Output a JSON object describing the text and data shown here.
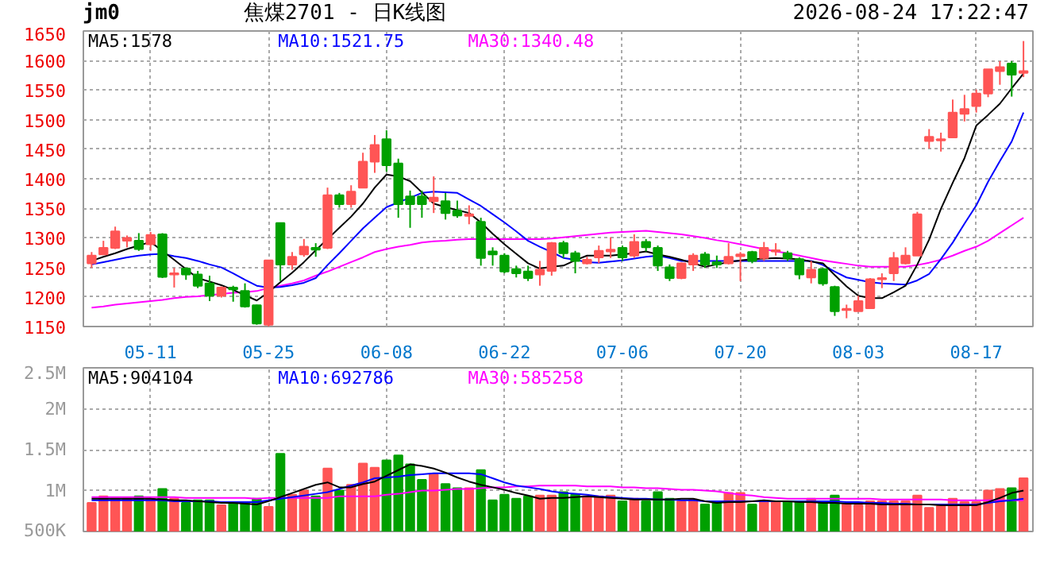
{
  "chart_data": [
    {
      "type": "candlestick",
      "title": "jm0",
      "subtitle": "焦煤2701 - 日K线图",
      "annotations": [
        "2026-08-24 17:22:47"
      ],
      "categories": [
        null,
        null,
        null,
        null,
        null,
        "05-11",
        null,
        null,
        null,
        null,
        null,
        null,
        null,
        null,
        null,
        "05-25",
        null,
        null,
        null,
        null,
        null,
        null,
        null,
        null,
        null,
        "06-08",
        null,
        null,
        null,
        null,
        null,
        null,
        null,
        null,
        null,
        "06-22",
        null,
        null,
        null,
        null,
        null,
        null,
        null,
        null,
        null,
        "07-06",
        null,
        null,
        null,
        null,
        null,
        null,
        null,
        null,
        null,
        "07-20",
        null,
        null,
        null,
        null,
        null,
        null,
        null,
        null,
        null,
        "08-03",
        null,
        null,
        null,
        null,
        null,
        null,
        null,
        null,
        null,
        "08-17",
        null,
        null,
        null,
        null
      ],
      "ohlc": [
        [
          1257,
          1276,
          1249,
          1270
        ],
        [
          1272,
          1295,
          1272,
          1283
        ],
        [
          1283,
          1319,
          1281,
          1311
        ],
        [
          1295,
          1304,
          1284,
          1300
        ],
        [
          1295,
          1308,
          1278,
          1281
        ],
        [
          1289,
          1310,
          1278,
          1305
        ],
        [
          1306,
          1308,
          1232,
          1234
        ],
        [
          1238,
          1249,
          1216,
          1240
        ],
        [
          1248,
          1250,
          1229,
          1238
        ],
        [
          1238,
          1244,
          1215,
          1219
        ],
        [
          1223,
          1236,
          1193,
          1202
        ],
        [
          1202,
          1218,
          1199,
          1216
        ],
        [
          1216,
          1219,
          1192,
          1213
        ],
        [
          1210,
          1223,
          1182,
          1184
        ],
        [
          1186,
          1187,
          1153,
          1155
        ],
        [
          1153,
          1262,
          1150,
          1262
        ],
        [
          1325,
          1325,
          1227,
          1255
        ],
        [
          1255,
          1276,
          1246,
          1268
        ],
        [
          1272,
          1298,
          1268,
          1285
        ],
        [
          1283,
          1291,
          1268,
          1280
        ],
        [
          1283,
          1385,
          1281,
          1372
        ],
        [
          1372,
          1376,
          1351,
          1357
        ],
        [
          1357,
          1389,
          1351,
          1378
        ],
        [
          1385,
          1444,
          1385,
          1429
        ],
        [
          1429,
          1474,
          1410,
          1457
        ],
        [
          1467,
          1482,
          1412,
          1423
        ],
        [
          1426,
          1434,
          1334,
          1357
        ],
        [
          1370,
          1380,
          1317,
          1357
        ],
        [
          1370,
          1380,
          1334,
          1357
        ],
        [
          1362,
          1404,
          1342,
          1368
        ],
        [
          1362,
          1376,
          1331,
          1342
        ],
        [
          1346,
          1363,
          1334,
          1338
        ],
        [
          1337,
          1355,
          1323,
          1340
        ],
        [
          1327,
          1334,
          1253,
          1266
        ],
        [
          1277,
          1284,
          1253,
          1272
        ],
        [
          1270,
          1274,
          1240,
          1243
        ],
        [
          1247,
          1253,
          1233,
          1240
        ],
        [
          1243,
          1253,
          1227,
          1232
        ],
        [
          1238,
          1261,
          1219,
          1246
        ],
        [
          1244,
          1293,
          1236,
          1291
        ],
        [
          1291,
          1295,
          1266,
          1274
        ],
        [
          1274,
          1278,
          1240,
          1261
        ],
        [
          1257,
          1268,
          1255,
          1263
        ],
        [
          1267,
          1287,
          1257,
          1278
        ],
        [
          1277,
          1301,
          1266,
          1280
        ],
        [
          1283,
          1287,
          1261,
          1267
        ],
        [
          1270,
          1306,
          1266,
          1293
        ],
        [
          1293,
          1298,
          1277,
          1284
        ],
        [
          1283,
          1287,
          1244,
          1253
        ],
        [
          1250,
          1255,
          1227,
          1232
        ],
        [
          1232,
          1258,
          1230,
          1257
        ],
        [
          1255,
          1274,
          1244,
          1270
        ],
        [
          1272,
          1276,
          1249,
          1255
        ],
        [
          1259,
          1270,
          1249,
          1255
        ],
        [
          1257,
          1291,
          1255,
          1268
        ],
        [
          1269,
          1276,
          1227,
          1272
        ],
        [
          1276,
          1278,
          1257,
          1261
        ],
        [
          1266,
          1293,
          1261,
          1283
        ],
        [
          1277,
          1291,
          1270,
          1279
        ],
        [
          1274,
          1278,
          1261,
          1266
        ],
        [
          1264,
          1267,
          1230,
          1238
        ],
        [
          1233,
          1261,
          1223,
          1246
        ],
        [
          1247,
          1249,
          1219,
          1223
        ],
        [
          1217,
          1219,
          1168,
          1176
        ],
        [
          1178,
          1187,
          1164,
          1180
        ],
        [
          1176,
          1202,
          1176,
          1193
        ],
        [
          1181,
          1232,
          1181,
          1230
        ],
        [
          1230,
          1240,
          1215,
          1232
        ],
        [
          1240,
          1276,
          1227,
          1266
        ],
        [
          1257,
          1284,
          1255,
          1270
        ],
        [
          1270,
          1344,
          1270,
          1340
        ],
        [
          1464,
          1484,
          1451,
          1471
        ],
        [
          1465,
          1478,
          1446,
          1467
        ],
        [
          1470,
          1534,
          1470,
          1512
        ],
        [
          1510,
          1542,
          1497,
          1518
        ],
        [
          1523,
          1551,
          1512,
          1544
        ],
        [
          1544,
          1585,
          1538,
          1585
        ],
        [
          1582,
          1599,
          1559,
          1589
        ],
        [
          1595,
          1599,
          1539,
          1576
        ],
        [
          1579,
          1633,
          1572,
          1582
        ]
      ],
      "colors": [
        "#ff5555",
        "#ff5555",
        "#ff5555",
        "#ff5555",
        "#00a000",
        "#ff5555",
        "#00a000",
        "#ff5555",
        "#00a000",
        "#00a000",
        "#00a000",
        "#ff5555",
        "#00a000",
        "#00a000",
        "#00a000",
        "#ff5555",
        "#00a000",
        "#ff5555",
        "#ff5555",
        "#00a000",
        "#ff5555",
        "#00a000",
        "#ff5555",
        "#ff5555",
        "#ff5555",
        "#00a000",
        "#00a000",
        "#00a000",
        "#00a000",
        "#ff5555",
        "#00a000",
        "#00a000",
        "#ff5555",
        "#00a000",
        "#00a000",
        "#00a000",
        "#00a000",
        "#00a000",
        "#ff5555",
        "#ff5555",
        "#00a000",
        "#00a000",
        "#ff5555",
        "#ff5555",
        "#ff5555",
        "#00a000",
        "#ff5555",
        "#00a000",
        "#00a000",
        "#00a000",
        "#ff5555",
        "#ff5555",
        "#00a000",
        "#00a000",
        "#ff5555",
        "#ff5555",
        "#00a000",
        "#ff5555",
        "#ff5555",
        "#00a000",
        "#00a000",
        "#ff5555",
        "#00a000",
        "#00a000",
        "#ff5555",
        "#ff5555",
        "#ff5555",
        "#ff5555",
        "#ff5555",
        "#ff5555",
        "#ff5555",
        "#ff5555",
        "#ff5555",
        "#ff5555",
        "#ff5555",
        "#ff5555",
        "#ff5555",
        "#ff5555",
        "#00a000",
        "#ff5555"
      ],
      "series": [
        {
          "type": "line",
          "name": "MA5:1578",
          "color": "#000000",
          "values": [
            1261,
            1268,
            1274,
            1281,
            1287,
            1293,
            1278,
            1263,
            1247,
            1232,
            1226,
            1220,
            1212,
            1203,
            1194,
            1208,
            1225,
            1241,
            1259,
            1279,
            1298,
            1317,
            1336,
            1358,
            1385,
            1407,
            1404,
            1396,
            1377,
            1358,
            1352,
            1347,
            1342,
            1326,
            1307,
            1289,
            1273,
            1257,
            1248,
            1251,
            1253,
            1262,
            1270,
            1270,
            1270,
            1272,
            1274,
            1277,
            1272,
            1268,
            1263,
            1257,
            1251,
            1255,
            1259,
            1262,
            1264,
            1265,
            1266,
            1265,
            1264,
            1260,
            1257,
            1237,
            1218,
            1202,
            1198,
            1198,
            1208,
            1219,
            1255,
            1297,
            1349,
            1393,
            1435,
            1490,
            1508,
            1527,
            1553,
            1578
          ]
        },
        {
          "type": "line",
          "name": "MA10:1521.75",
          "color": "#0000ff",
          "values": [
            1255,
            1259,
            1263,
            1267,
            1270,
            1272,
            1273,
            1269,
            1266,
            1261,
            1255,
            1250,
            1240,
            1229,
            1219,
            1216,
            1217,
            1220,
            1224,
            1232,
            1254,
            1274,
            1295,
            1316,
            1334,
            1352,
            1360,
            1368,
            1376,
            1378,
            1377,
            1376,
            1365,
            1354,
            1340,
            1326,
            1311,
            1295,
            1285,
            1276,
            1266,
            1263,
            1259,
            1258,
            1260,
            1262,
            1265,
            1268,
            1270,
            1266,
            1261,
            1261,
            1261,
            1261,
            1261,
            1261,
            1261,
            1261,
            1261,
            1261,
            1261,
            1261,
            1254,
            1243,
            1233,
            1229,
            1225,
            1223,
            1222,
            1221,
            1228,
            1239,
            1264,
            1292,
            1324,
            1355,
            1395,
            1430,
            1463,
            1512
          ]
        },
        {
          "type": "line",
          "name": "MA30:1340.48",
          "color": "#ff00ff",
          "values": [
            1182,
            1184,
            1187,
            1189,
            1191,
            1193,
            1195,
            1198,
            1200,
            1201,
            1203,
            1205,
            1207,
            1208,
            1210,
            1215,
            1219,
            1223,
            1228,
            1236,
            1243,
            1251,
            1259,
            1267,
            1276,
            1281,
            1285,
            1288,
            1292,
            1294,
            1295,
            1297,
            1298,
            1298,
            1298,
            1298,
            1298,
            1298,
            1298,
            1299,
            1301,
            1303,
            1305,
            1307,
            1309,
            1310,
            1311,
            1312,
            1310,
            1308,
            1306,
            1303,
            1300,
            1296,
            1293,
            1289,
            1285,
            1281,
            1277,
            1274,
            1270,
            1266,
            1262,
            1259,
            1256,
            1253,
            1251,
            1251,
            1251,
            1251,
            1254,
            1258,
            1263,
            1270,
            1278,
            1285,
            1295,
            1308,
            1321,
            1334
          ]
        }
      ],
      "ylim": [
        1150,
        1650
      ],
      "yticks": [
        1150,
        1200,
        1250,
        1300,
        1350,
        1400,
        1450,
        1500,
        1550,
        1600,
        1650
      ],
      "grid": true,
      "legend": "top left"
    },
    {
      "type": "bar",
      "categories": [
        null,
        null,
        null,
        null,
        null,
        null,
        null,
        null,
        null,
        null,
        null,
        null,
        null,
        null,
        null,
        null,
        null,
        null,
        null,
        null,
        null,
        null,
        null,
        null,
        null,
        null,
        null,
        null,
        null,
        null,
        null,
        null,
        null,
        null,
        null,
        null,
        null,
        null,
        null,
        null,
        null,
        null,
        null,
        null,
        null,
        null,
        null,
        null,
        null,
        null,
        null,
        null,
        null,
        null,
        null,
        null,
        null,
        null,
        null,
        null,
        null,
        null,
        null,
        null,
        null,
        null,
        null,
        null,
        null,
        null,
        null,
        null,
        null,
        null,
        null,
        null,
        null,
        null,
        null,
        null
      ],
      "values": [
        850000,
        930000,
        900000,
        900000,
        930000,
        900000,
        1020000,
        900000,
        850000,
        880000,
        880000,
        820000,
        850000,
        850000,
        900000,
        800000,
        1450000,
        950000,
        1000000,
        930000,
        1270000,
        1000000,
        1070000,
        1330000,
        1280000,
        1370000,
        1430000,
        1320000,
        1130000,
        1200000,
        1080000,
        1030000,
        1030000,
        1250000,
        880000,
        950000,
        900000,
        930000,
        940000,
        940000,
        980000,
        950000,
        930000,
        930000,
        940000,
        870000,
        900000,
        870000,
        980000,
        900000,
        870000,
        890000,
        830000,
        870000,
        970000,
        970000,
        830000,
        870000,
        870000,
        870000,
        870000,
        900000,
        870000,
        940000,
        830000,
        820000,
        870000,
        870000,
        870000,
        870000,
        940000,
        790000,
        810000,
        900000,
        860000,
        860000,
        1000000,
        1020000,
        1030000,
        1150000
      ],
      "colors": [
        "#ff5555",
        "#ff5555",
        "#ff5555",
        "#ff5555",
        "#00a000",
        "#ff5555",
        "#00a000",
        "#ff5555",
        "#00a000",
        "#00a000",
        "#00a000",
        "#ff5555",
        "#00a000",
        "#00a000",
        "#00a000",
        "#ff5555",
        "#00a000",
        "#ff5555",
        "#ff5555",
        "#00a000",
        "#ff5555",
        "#00a000",
        "#ff5555",
        "#ff5555",
        "#ff5555",
        "#00a000",
        "#00a000",
        "#00a000",
        "#00a000",
        "#ff5555",
        "#00a000",
        "#00a000",
        "#ff5555",
        "#00a000",
        "#00a000",
        "#00a000",
        "#00a000",
        "#00a000",
        "#ff5555",
        "#ff5555",
        "#00a000",
        "#00a000",
        "#ff5555",
        "#ff5555",
        "#ff5555",
        "#00a000",
        "#ff5555",
        "#00a000",
        "#00a000",
        "#00a000",
        "#ff5555",
        "#ff5555",
        "#00a000",
        "#00a000",
        "#ff5555",
        "#ff5555",
        "#00a000",
        "#ff5555",
        "#ff5555",
        "#00a000",
        "#00a000",
        "#ff5555",
        "#00a000",
        "#00a000",
        "#ff5555",
        "#ff5555",
        "#ff5555",
        "#ff5555",
        "#ff5555",
        "#ff5555",
        "#ff5555",
        "#ff5555",
        "#ff5555",
        "#ff5555",
        "#ff5555",
        "#ff5555",
        "#ff5555",
        "#ff5555",
        "#00a000",
        "#ff5555"
      ],
      "series": [
        {
          "type": "line",
          "name": "MA5:904104",
          "color": "#000000",
          "values": [
            900000,
            900000,
            900000,
            900000,
            900000,
            900000,
            890000,
            880000,
            880000,
            870000,
            860000,
            850000,
            850000,
            840000,
            830000,
            870000,
            920000,
            970000,
            1020000,
            1070000,
            1100000,
            1040000,
            1040000,
            1080000,
            1110000,
            1180000,
            1250000,
            1320000,
            1300000,
            1270000,
            1220000,
            1160000,
            1110000,
            1070000,
            1040000,
            1010000,
            970000,
            940000,
            900000,
            910000,
            910000,
            920000,
            930000,
            920000,
            910000,
            900000,
            890000,
            890000,
            890000,
            890000,
            900000,
            900000,
            870000,
            850000,
            860000,
            860000,
            870000,
            880000,
            870000,
            870000,
            860000,
            860000,
            850000,
            850000,
            840000,
            840000,
            840000,
            830000,
            830000,
            830000,
            830000,
            830000,
            820000,
            820000,
            820000,
            820000,
            860000,
            910000,
            970000,
            1000000
          ]
        },
        {
          "type": "line",
          "name": "MA10:692786",
          "color": "#0000ff",
          "values": [
            880000,
            880000,
            880000,
            880000,
            880000,
            880000,
            880000,
            870000,
            870000,
            870000,
            870000,
            860000,
            860000,
            860000,
            860000,
            880000,
            900000,
            920000,
            940000,
            960000,
            980000,
            1020000,
            1060000,
            1100000,
            1150000,
            1160000,
            1170000,
            1190000,
            1200000,
            1210000,
            1210000,
            1210000,
            1210000,
            1200000,
            1150000,
            1100000,
            1060000,
            1040000,
            1020000,
            990000,
            970000,
            960000,
            950000,
            930000,
            920000,
            910000,
            900000,
            900000,
            890000,
            890000,
            880000,
            880000,
            870000,
            870000,
            870000,
            870000,
            870000,
            870000,
            870000,
            870000,
            870000,
            870000,
            870000,
            870000,
            860000,
            860000,
            850000,
            850000,
            840000,
            840000,
            830000,
            830000,
            830000,
            830000,
            830000,
            830000,
            850000,
            870000,
            880000,
            900000
          ]
        },
        {
          "type": "line",
          "name": "MA30:585258",
          "color": "#ff00ff",
          "values": [
            920000,
            920000,
            920000,
            920000,
            920000,
            920000,
            920000,
            920000,
            910000,
            910000,
            910000,
            910000,
            910000,
            910000,
            900000,
            910000,
            910000,
            910000,
            910000,
            910000,
            910000,
            930000,
            930000,
            930000,
            930000,
            950000,
            960000,
            980000,
            1000000,
            1000000,
            1010000,
            1020000,
            1020000,
            1030000,
            1040000,
            1040000,
            1050000,
            1050000,
            1060000,
            1060000,
            1060000,
            1060000,
            1050000,
            1050000,
            1050000,
            1040000,
            1040000,
            1030000,
            1030000,
            1020000,
            1010000,
            1010000,
            1000000,
            990000,
            970000,
            950000,
            940000,
            920000,
            910000,
            900000,
            900000,
            900000,
            900000,
            900000,
            900000,
            900000,
            900000,
            890000,
            890000,
            890000,
            890000,
            890000,
            890000,
            880000,
            880000,
            880000,
            880000,
            880000,
            880000,
            880000
          ]
        }
      ],
      "ylim": [
        500000,
        2500000
      ],
      "yticks": [
        {
          "value": 500000,
          "label": "500K"
        },
        {
          "value": 1000000,
          "label": "1M"
        },
        {
          "value": 1500000,
          "label": "1.5M"
        },
        {
          "value": 2000000,
          "label": "2M"
        },
        {
          "value": 2500000,
          "label": "2.5M"
        }
      ],
      "grid": true,
      "legend": "top left",
      "tick_labels": "y"
    }
  ]
}
